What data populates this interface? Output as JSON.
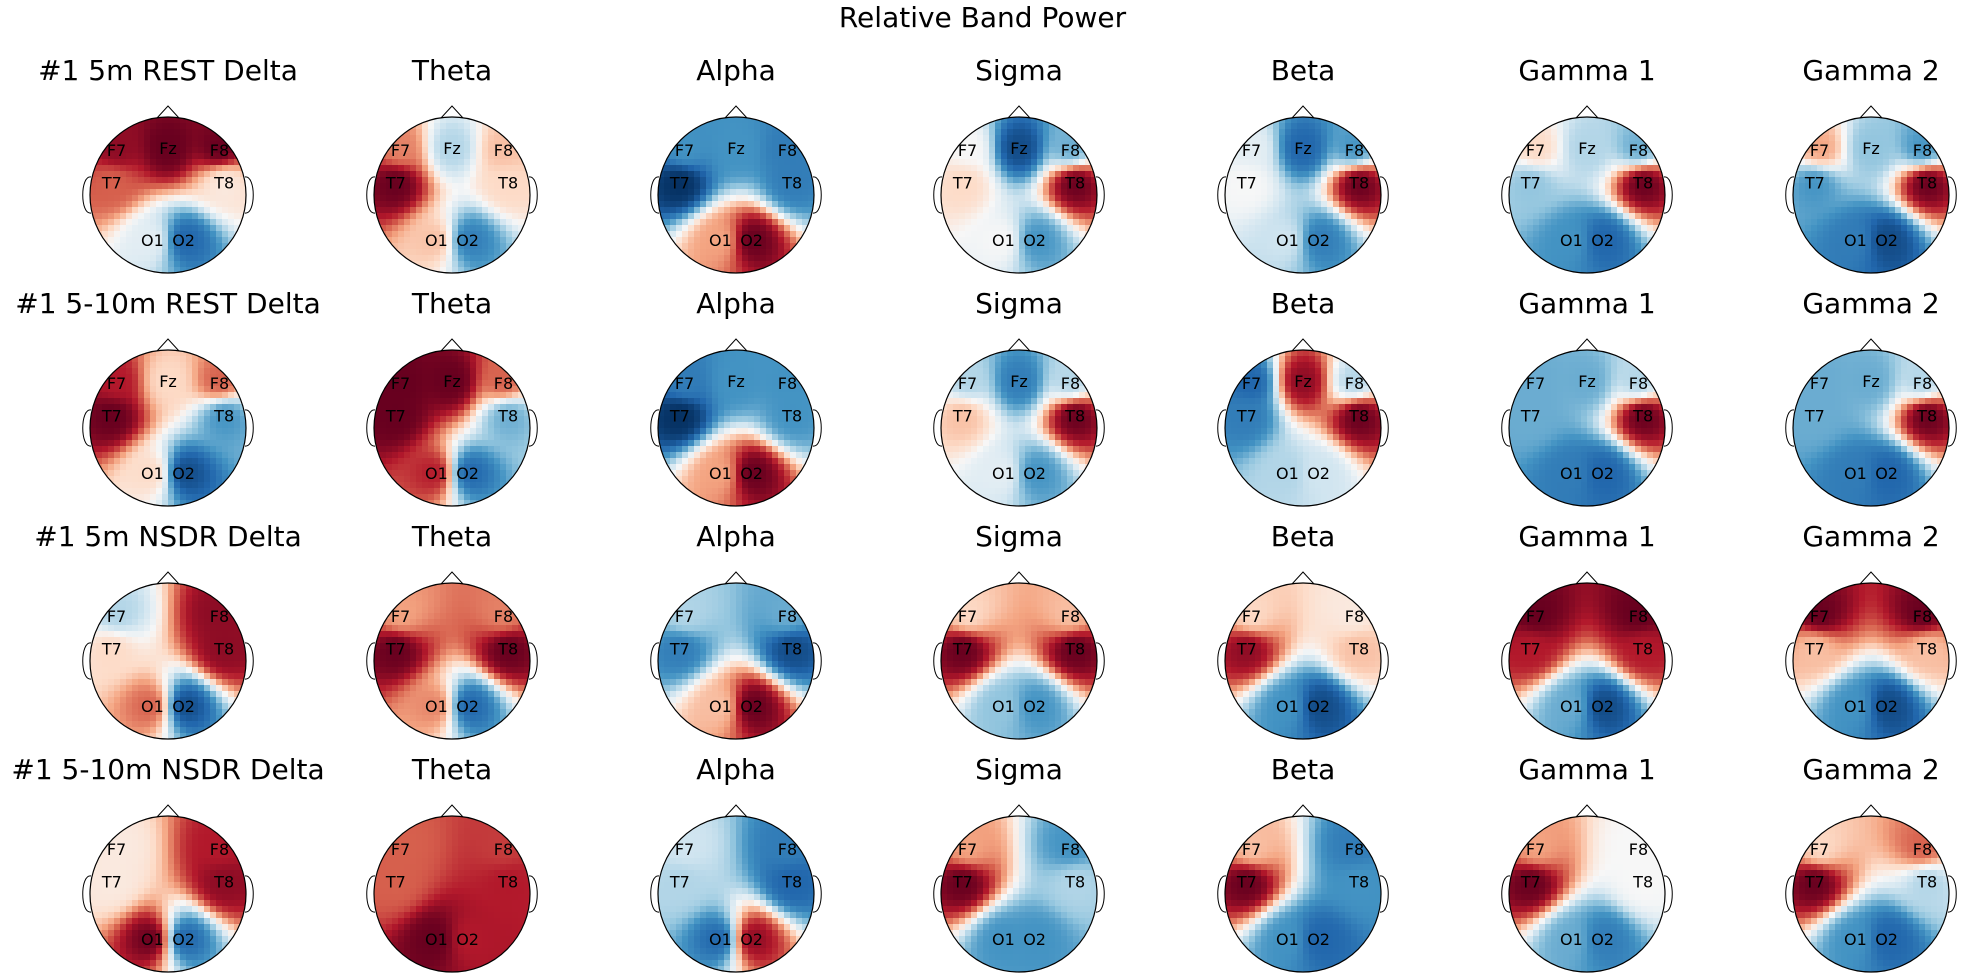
{
  "title": "Relative Band Power",
  "chart_data": {
    "type": "heatmap",
    "title": "Relative Band Power",
    "bands": [
      "Delta",
      "Theta",
      "Alpha",
      "Sigma",
      "Beta",
      "Gamma 1",
      "Gamma 2"
    ],
    "conditions": [
      "#1 5m REST",
      "#1 5-10m REST",
      "#1 5m NSDR",
      "#1 5-10m NSDR"
    ],
    "channels": [
      "F7",
      "Fz",
      "F8",
      "T7",
      "T8",
      "O1",
      "O2"
    ],
    "colormap": "RdBu_r",
    "panels": [
      [
        {
          "title": "#1 5m REST Delta",
          "sensors": [
            "F7",
            "Fz",
            "F8",
            "T7",
            "T8",
            "O1",
            "O2"
          ],
          "values": [
            0.9,
            1.0,
            1.0,
            0.6,
            0.1,
            -0.1,
            -0.8
          ]
        },
        {
          "title": "Theta",
          "sensors": [
            "F7",
            "Fz",
            "F8",
            "T7",
            "T8",
            "O1",
            "O2"
          ],
          "values": [
            0.5,
            -0.3,
            0.3,
            1.0,
            0.2,
            0.3,
            -0.7
          ]
        },
        {
          "title": "Alpha",
          "sensors": [
            "F7",
            "Fz",
            "F8",
            "T7",
            "T8",
            "O1",
            "O2"
          ],
          "values": [
            -0.6,
            -0.6,
            -0.7,
            -1.0,
            -0.7,
            0.4,
            1.0
          ]
        },
        {
          "title": "Sigma",
          "sensors": [
            "F7",
            "Fz",
            "F8",
            "T7",
            "T8",
            "O1",
            "O2"
          ],
          "values": [
            0.0,
            -0.9,
            -0.5,
            0.2,
            1.0,
            0.0,
            -0.6
          ]
        },
        {
          "title": "Beta",
          "sensors": [
            "F7",
            "Fz",
            "F8",
            "T7",
            "T8",
            "O1",
            "O2"
          ],
          "values": [
            -0.1,
            -0.8,
            -0.6,
            0.0,
            1.0,
            -0.2,
            -0.7
          ]
        },
        {
          "title": "Gamma 1",
          "sensors": [
            "F7",
            "Fz",
            "F8",
            "T7",
            "T8",
            "O1",
            "O2"
          ],
          "values": [
            0.2,
            -0.3,
            -0.5,
            -0.4,
            1.0,
            -0.6,
            -0.8
          ]
        },
        {
          "title": "Gamma 2",
          "sensors": [
            "F7",
            "Fz",
            "F8",
            "T7",
            "T8",
            "O1",
            "O2"
          ],
          "values": [
            0.4,
            -0.4,
            -0.6,
            -0.6,
            1.0,
            -0.7,
            -0.9
          ]
        }
      ],
      [
        {
          "title": "#1 5-10m REST Delta",
          "sensors": [
            "F7",
            "Fz",
            "F8",
            "T7",
            "T8",
            "O1",
            "O2"
          ],
          "values": [
            0.8,
            0.2,
            0.6,
            1.0,
            -0.6,
            0.2,
            -0.9
          ]
        },
        {
          "title": "Theta",
          "sensors": [
            "F7",
            "Fz",
            "F8",
            "T7",
            "T8",
            "O1",
            "O2"
          ],
          "values": [
            1.0,
            1.0,
            0.6,
            1.0,
            -0.5,
            0.8,
            -0.8
          ]
        },
        {
          "title": "Alpha",
          "sensors": [
            "F7",
            "Fz",
            "F8",
            "T7",
            "T8",
            "O1",
            "O2"
          ],
          "values": [
            -0.7,
            -0.6,
            -0.6,
            -1.0,
            -0.6,
            0.4,
            1.0
          ]
        },
        {
          "title": "Sigma",
          "sensors": [
            "F7",
            "Fz",
            "F8",
            "T7",
            "T8",
            "O1",
            "O2"
          ],
          "values": [
            -0.3,
            -0.7,
            -0.3,
            0.3,
            1.0,
            -0.1,
            -0.6
          ]
        },
        {
          "title": "Beta",
          "sensors": [
            "F7",
            "Fz",
            "F8",
            "T7",
            "T8",
            "O1",
            "O2"
          ],
          "values": [
            -0.8,
            0.9,
            -0.3,
            -0.7,
            1.0,
            -0.3,
            -0.2
          ]
        },
        {
          "title": "Gamma 1",
          "sensors": [
            "F7",
            "Fz",
            "F8",
            "T7",
            "T8",
            "O1",
            "O2"
          ],
          "values": [
            -0.5,
            -0.5,
            -0.3,
            -0.5,
            1.0,
            -0.7,
            -0.8
          ]
        },
        {
          "title": "Gamma 2",
          "sensors": [
            "F7",
            "Fz",
            "F8",
            "T7",
            "T8",
            "O1",
            "O2"
          ],
          "values": [
            -0.5,
            -0.5,
            -0.3,
            -0.5,
            1.0,
            -0.7,
            -0.8
          ]
        }
      ],
      [
        {
          "title": "#1 5m NSDR Delta",
          "sensors": [
            "F7",
            "F8",
            "T7",
            "T8",
            "O1",
            "O2"
          ],
          "values": [
            -0.3,
            0.9,
            0.2,
            0.9,
            0.6,
            -0.9
          ]
        },
        {
          "title": "Theta",
          "sensors": [
            "F7",
            "F8",
            "T7",
            "T8",
            "O1",
            "O2"
          ],
          "values": [
            0.4,
            0.5,
            1.0,
            1.0,
            0.5,
            -0.8
          ]
        },
        {
          "title": "Alpha",
          "sensors": [
            "F7",
            "F8",
            "T7",
            "T8",
            "O1",
            "O2"
          ],
          "values": [
            -0.3,
            -0.5,
            -0.7,
            -0.9,
            0.3,
            1.0
          ]
        },
        {
          "title": "Sigma",
          "sensors": [
            "F7",
            "F8",
            "T7",
            "T8",
            "O1",
            "O2"
          ],
          "values": [
            0.2,
            0.3,
            1.0,
            1.0,
            -0.4,
            -0.6
          ]
        },
        {
          "title": "Beta",
          "sensors": [
            "F7",
            "F8",
            "T7",
            "T8",
            "O1",
            "O2"
          ],
          "values": [
            0.2,
            0.1,
            0.9,
            0.3,
            -0.6,
            -0.9
          ]
        },
        {
          "title": "Gamma 1",
          "sensors": [
            "F7",
            "F8",
            "T7",
            "T8",
            "O1",
            "O2"
          ],
          "values": [
            1.0,
            1.0,
            0.8,
            0.8,
            -0.5,
            -0.9
          ]
        },
        {
          "title": "Gamma 2",
          "sensors": [
            "F7",
            "F8",
            "T7",
            "T8",
            "O1",
            "O2"
          ],
          "values": [
            1.0,
            1.0,
            0.3,
            0.3,
            -0.6,
            -0.9
          ]
        }
      ],
      [
        {
          "title": "#1 5-10m NSDR Delta",
          "sensors": [
            "F7",
            "F8",
            "T7",
            "T8",
            "O1",
            "O2"
          ],
          "values": [
            0.1,
            0.8,
            0.1,
            0.9,
            1.0,
            -0.8
          ]
        },
        {
          "title": "Theta",
          "sensors": [
            "F7",
            "F8",
            "T7",
            "T8",
            "O1",
            "O2"
          ],
          "values": [
            0.6,
            0.7,
            0.6,
            0.8,
            1.0,
            0.8
          ]
        },
        {
          "title": "Alpha",
          "sensors": [
            "F7",
            "F8",
            "T7",
            "T8",
            "O1",
            "O2"
          ],
          "values": [
            -0.2,
            -0.7,
            -0.3,
            -0.8,
            -0.8,
            0.9
          ]
        },
        {
          "title": "Sigma",
          "sensors": [
            "F7",
            "F8",
            "T7",
            "T8",
            "O1",
            "O2"
          ],
          "values": [
            0.4,
            -0.6,
            1.0,
            -0.3,
            -0.6,
            -0.6
          ]
        },
        {
          "title": "Beta",
          "sensors": [
            "F7",
            "F8",
            "T7",
            "T8",
            "O1",
            "O2"
          ],
          "values": [
            0.3,
            -0.7,
            1.0,
            -0.6,
            -0.6,
            -0.8
          ]
        },
        {
          "title": "Gamma 1",
          "sensors": [
            "F7",
            "F8",
            "T7",
            "T8",
            "O1",
            "O2"
          ],
          "values": [
            0.4,
            0.0,
            1.0,
            0.0,
            -0.5,
            -0.7
          ]
        },
        {
          "title": "Gamma 2",
          "sensors": [
            "F7",
            "F8",
            "T7",
            "T8",
            "O1",
            "O2"
          ],
          "values": [
            0.2,
            0.6,
            1.0,
            -0.3,
            -0.6,
            -0.8
          ]
        }
      ]
    ]
  }
}
